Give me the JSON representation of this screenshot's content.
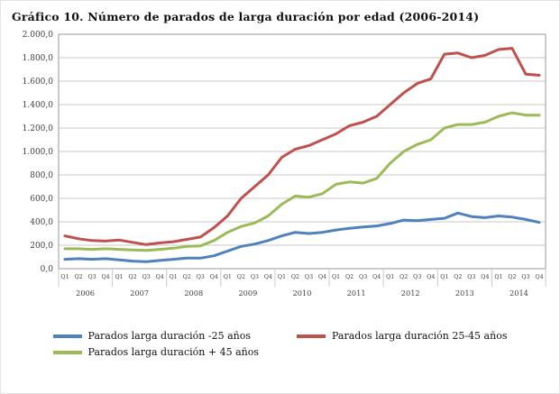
{
  "title": "Gráfico 10. Número de parados de larga duración por edad (2006-2014)",
  "chart_data": {
    "type": "line",
    "x_labels": [
      "Q1",
      "Q2",
      "Q3",
      "Q4",
      "Q1",
      "Q2",
      "Q3",
      "Q4",
      "Q1",
      "Q2",
      "Q3",
      "Q4",
      "Q1",
      "Q2",
      "Q3",
      "Q4",
      "Q1",
      "Q2",
      "Q3",
      "Q4",
      "Q1",
      "Q2",
      "Q3",
      "Q4",
      "Q1",
      "Q2",
      "Q3",
      "Q4",
      "Q1",
      "Q2",
      "Q3",
      "Q4",
      "Q1",
      "Q2",
      "Q3",
      "Q4"
    ],
    "years": [
      "2006",
      "2007",
      "2008",
      "2009",
      "2010",
      "2011",
      "2012",
      "2013",
      "2014"
    ],
    "y_tick_labels": [
      "0,0",
      "200,0",
      "400,0",
      "600,0",
      "800,0",
      "1.000,0",
      "1.200,0",
      "1.400,0",
      "1.600,0",
      "1.800,0",
      "2.000,0"
    ],
    "ylim": [
      0,
      2000
    ],
    "y_step": 200,
    "grid": "horizontal",
    "legend_position": "bottom",
    "series": [
      {
        "name": "Parados larga duración -25 años",
        "color": "#4F81BD",
        "values": [
          80,
          85,
          80,
          85,
          75,
          65,
          60,
          70,
          80,
          90,
          90,
          110,
          150,
          190,
          210,
          240,
          280,
          310,
          300,
          310,
          330,
          345,
          355,
          365,
          385,
          415,
          410,
          420,
          430,
          475,
          445,
          435,
          450,
          440,
          420,
          395
        ]
      },
      {
        "name": "Parados larga duración 25-45 años",
        "color": "#C0504D",
        "values": [
          280,
          255,
          240,
          235,
          245,
          225,
          205,
          220,
          230,
          250,
          270,
          350,
          450,
          600,
          700,
          800,
          950,
          1020,
          1050,
          1100,
          1150,
          1220,
          1250,
          1300,
          1400,
          1500,
          1580,
          1620,
          1830,
          1840,
          1800,
          1820,
          1870,
          1880,
          1660,
          1650
        ]
      },
      {
        "name": "Parados larga duración + 45 años",
        "color": "#9BBB59",
        "values": [
          170,
          170,
          165,
          170,
          165,
          160,
          155,
          165,
          175,
          190,
          195,
          240,
          310,
          360,
          390,
          450,
          550,
          620,
          610,
          640,
          720,
          740,
          730,
          770,
          900,
          1000,
          1060,
          1100,
          1200,
          1230,
          1230,
          1250,
          1300,
          1330,
          1310,
          1310
        ]
      }
    ]
  }
}
